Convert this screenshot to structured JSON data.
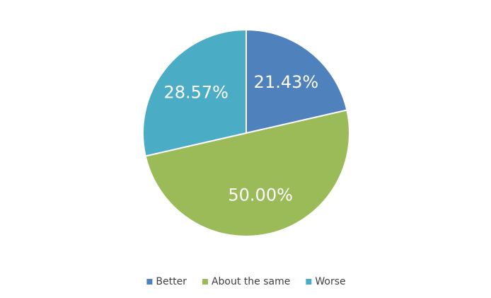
{
  "chart_data": {
    "type": "pie",
    "categories": [
      "Better",
      "About the same",
      "Worse"
    ],
    "values": [
      21.43,
      50.0,
      28.57
    ],
    "value_labels": [
      "21.43%",
      "50.00%",
      "28.57%"
    ],
    "colors": [
      "#4f81bd",
      "#9bbb59",
      "#4bacc6"
    ],
    "legend": "bottom"
  }
}
